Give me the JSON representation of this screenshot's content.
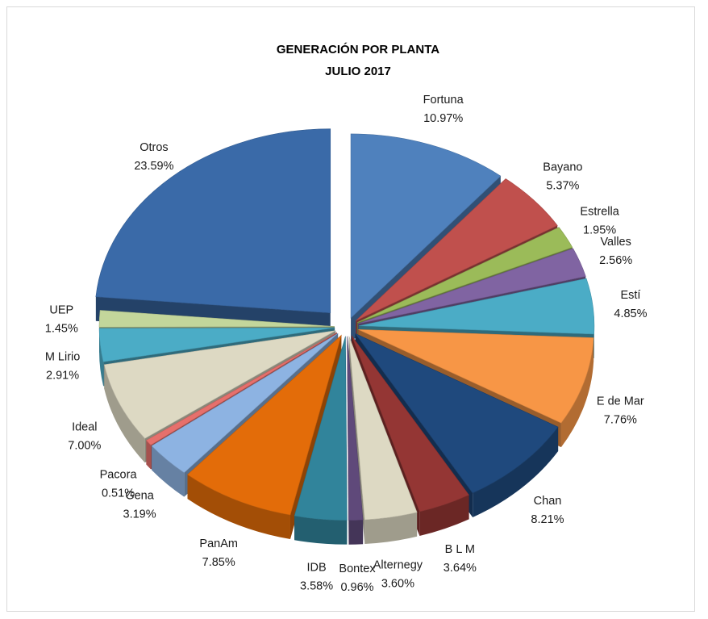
{
  "chart_data": {
    "type": "pie",
    "style": "exploded-3d",
    "title": [
      "GENERACIÓN  POR  PLANTA",
      "JULIO  2017"
    ],
    "legend": "none",
    "slices": [
      {
        "name": "Fortuna",
        "value": 10.97,
        "label": "10.97%",
        "color": "#4f81bd"
      },
      {
        "name": "Bayano",
        "value": 5.37,
        "label": "5.37%",
        "color": "#c0504d"
      },
      {
        "name": "Estrella",
        "value": 1.95,
        "label": "1.95%",
        "color": "#9bbb59"
      },
      {
        "name": "Valles",
        "value": 2.56,
        "label": "2.56%",
        "color": "#8064a2"
      },
      {
        "name": "Estí",
        "value": 4.85,
        "label": "4.85%",
        "color": "#4bacc6"
      },
      {
        "name": "E de Mar",
        "value": 7.76,
        "label": "7.76%",
        "color": "#f79646"
      },
      {
        "name": "Chan",
        "value": 8.21,
        "label": "8.21%",
        "color": "#1f497d"
      },
      {
        "name": "B L M",
        "value": 3.64,
        "label": "3.64%",
        "color": "#943634"
      },
      {
        "name": "Alternegy",
        "value": 3.6,
        "label": "3.60%",
        "color": "#ddd9c3"
      },
      {
        "name": "Bontex",
        "value": 0.96,
        "label": "0.96%",
        "color": "#5f497a"
      },
      {
        "name": "IDB",
        "value": 3.58,
        "label": "3.58%",
        "color": "#31849b"
      },
      {
        "name": "PanAm",
        "value": 7.85,
        "label": "7.85%",
        "color": "#e36c09"
      },
      {
        "name": "Gena",
        "value": 3.19,
        "label": "3.19%",
        "color": "#8db3e2"
      },
      {
        "name": "Pacora",
        "value": 0.51,
        "label": "0.51%",
        "color": "#e6706c"
      },
      {
        "name": "Ideal",
        "value": 7.0,
        "label": "7.00%",
        "color": "#ddd9c3"
      },
      {
        "name": "M Lirio",
        "value": 2.91,
        "label": "2.91%",
        "color": "#4bacc6"
      },
      {
        "name": "UEP",
        "value": 1.45,
        "label": "1.45%",
        "color": "#c3d69b"
      },
      {
        "name": "Otros",
        "value": 23.59,
        "label": "23.59%",
        "color": "#3a6aa8"
      }
    ]
  }
}
